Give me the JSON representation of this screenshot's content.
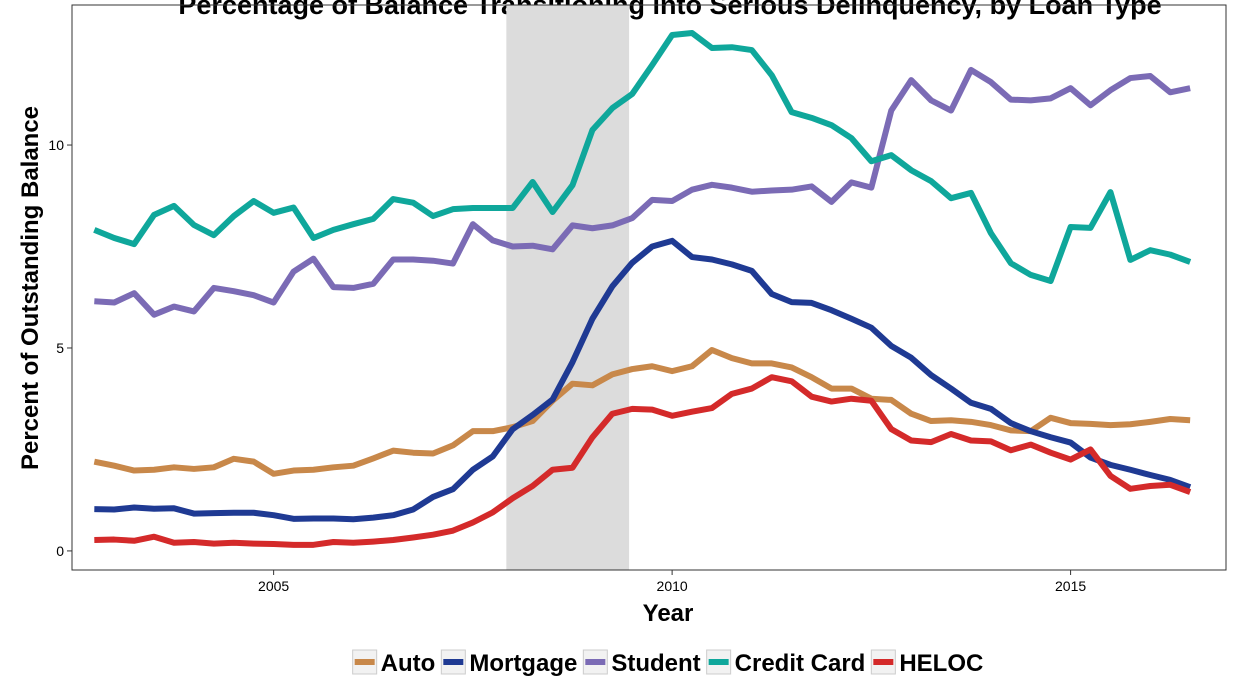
{
  "chart_data": {
    "type": "line",
    "title": "Percentage of Balance Transitioning into Serious Delinquency, by Loan Type",
    "x_label": "Year",
    "y_label": "Percent of Outstanding Balance",
    "x": [
      2002.75,
      2003,
      2003.25,
      2003.5,
      2003.75,
      2004,
      2004.25,
      2004.5,
      2004.75,
      2005,
      2005.25,
      2005.5,
      2005.75,
      2006,
      2006.25,
      2006.5,
      2006.75,
      2007,
      2007.25,
      2007.5,
      2007.75,
      2008,
      2008.25,
      2008.5,
      2008.75,
      2009,
      2009.25,
      2009.5,
      2009.75,
      2010,
      2010.25,
      2010.5,
      2010.75,
      2011,
      2011.25,
      2011.5,
      2011.75,
      2012,
      2012.25,
      2012.5,
      2012.75,
      2013,
      2013.25,
      2013.5,
      2013.75,
      2014,
      2014.25,
      2014.5,
      2014.75,
      2015,
      2015.25,
      2015.5,
      2015.75,
      2016,
      2016.25,
      2016.5
    ],
    "series": [
      {
        "name": "Auto",
        "color": "#c8884a",
        "values": [
          2.2,
          2.1,
          1.98,
          2.0,
          2.06,
          2.02,
          2.06,
          2.27,
          2.2,
          1.9,
          1.98,
          2.0,
          2.06,
          2.1,
          2.28,
          2.47,
          2.42,
          2.4,
          2.6,
          2.95,
          2.95,
          3.05,
          3.2,
          3.7,
          4.12,
          4.08,
          4.35,
          4.48,
          4.55,
          4.43,
          4.55,
          4.95,
          4.75,
          4.62,
          4.62,
          4.52,
          4.28,
          4.0,
          4.0,
          3.75,
          3.72,
          3.38,
          3.2,
          3.22,
          3.18,
          3.1,
          2.97,
          2.95,
          3.28,
          3.15,
          3.13,
          3.1,
          3.12,
          3.18,
          3.25,
          3.22
        ]
      },
      {
        "name": "Mortgage",
        "color": "#1f3a93",
        "values": [
          1.03,
          1.02,
          1.07,
          1.04,
          1.05,
          0.92,
          0.93,
          0.94,
          0.94,
          0.88,
          0.79,
          0.8,
          0.8,
          0.78,
          0.82,
          0.88,
          1.02,
          1.33,
          1.52,
          2.0,
          2.33,
          3.0,
          3.35,
          3.73,
          4.65,
          5.72,
          6.52,
          7.1,
          7.5,
          7.64,
          7.24,
          7.18,
          7.06,
          6.9,
          6.33,
          6.13,
          6.11,
          5.93,
          5.72,
          5.5,
          5.05,
          4.76,
          4.33,
          4.0,
          3.65,
          3.5,
          3.15,
          2.95,
          2.8,
          2.67,
          2.3,
          2.12,
          2.0,
          1.87,
          1.75,
          1.57
        ]
      },
      {
        "name": "Student",
        "color": "#7b6bb5",
        "values": [
          6.15,
          6.12,
          6.35,
          5.82,
          6.02,
          5.9,
          6.48,
          6.4,
          6.3,
          6.12,
          6.88,
          7.2,
          6.5,
          6.48,
          6.58,
          7.18,
          7.18,
          7.15,
          7.08,
          8.05,
          7.65,
          7.5,
          7.52,
          7.43,
          8.02,
          7.95,
          8.02,
          8.2,
          8.65,
          8.62,
          8.9,
          9.02,
          8.95,
          8.85,
          8.88,
          8.9,
          8.98,
          8.6,
          9.08,
          8.95,
          10.85,
          11.6,
          11.1,
          10.85,
          11.85,
          11.55,
          11.12,
          11.1,
          11.15,
          11.4,
          10.98,
          11.35,
          11.65,
          11.7,
          11.3,
          11.4
        ]
      },
      {
        "name": "Credit Card",
        "color": "#0fa79b",
        "values": [
          7.91,
          7.71,
          7.56,
          8.28,
          8.5,
          8.03,
          7.78,
          8.25,
          8.62,
          8.33,
          8.46,
          7.71,
          7.91,
          8.05,
          8.18,
          8.67,
          8.58,
          8.25,
          8.42,
          8.45,
          8.45,
          8.45,
          9.09,
          8.35,
          9.01,
          10.37,
          10.91,
          11.26,
          11.97,
          12.71,
          12.76,
          12.39,
          12.41,
          12.34,
          11.72,
          10.81,
          10.67,
          10.49,
          10.17,
          9.6,
          9.75,
          9.38,
          9.11,
          8.69,
          8.82,
          7.83,
          7.09,
          6.8,
          6.65,
          7.98,
          7.96,
          8.84,
          7.17,
          7.41,
          7.3,
          7.12
        ]
      },
      {
        "name": "HELOC",
        "color": "#d42a2a",
        "values": [
          0.27,
          0.28,
          0.25,
          0.35,
          0.2,
          0.22,
          0.18,
          0.2,
          0.18,
          0.17,
          0.15,
          0.15,
          0.22,
          0.2,
          0.23,
          0.27,
          0.33,
          0.4,
          0.5,
          0.7,
          0.95,
          1.3,
          1.6,
          2.0,
          2.05,
          2.8,
          3.38,
          3.5,
          3.48,
          3.33,
          3.43,
          3.52,
          3.87,
          4.0,
          4.28,
          4.18,
          3.8,
          3.68,
          3.75,
          3.7,
          3.0,
          2.72,
          2.68,
          2.88,
          2.72,
          2.7,
          2.48,
          2.62,
          2.42,
          2.25,
          2.5,
          1.85,
          1.53,
          1.6,
          1.63,
          1.45
        ]
      }
    ],
    "shaded_region": [
      2007.92,
      2009.46
    ],
    "xlim": [
      2002.47,
      2016.95
    ],
    "xticks": [
      2005,
      2010,
      2015
    ],
    "ylim": [
      -0.47,
      13.45
    ],
    "yticks": [
      0,
      5,
      10
    ],
    "legend": "bottom"
  }
}
